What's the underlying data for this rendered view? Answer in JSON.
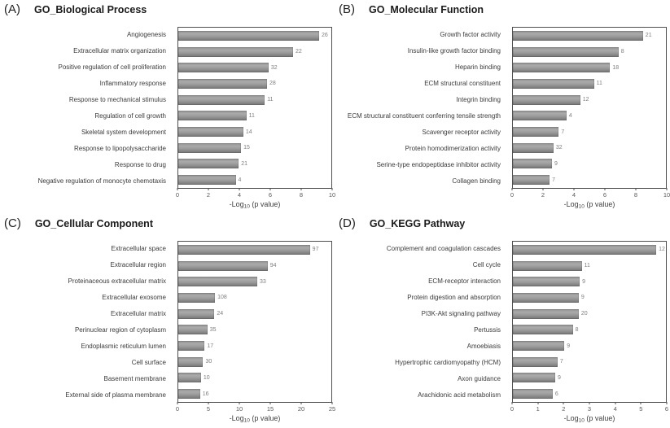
{
  "figure": {
    "background": "#ffffff",
    "bar_color_top": "#8f8f8f",
    "bar_color_mid": "#ababab",
    "bar_color_bottom": "#747474",
    "plot_border_color": "#4f4f4f",
    "xlabel_pre": "-Log",
    "xlabel_sub": "10",
    "xlabel_post": " (p value)"
  },
  "chart_data": [
    {
      "type": "bar",
      "orientation": "horizontal",
      "panel_letter": "(A)",
      "title": "GO_Biological Process",
      "xlabel": "-Log10 (p value)",
      "xlim": [
        0,
        10
      ],
      "xticks": [
        0,
        2,
        4,
        6,
        8,
        10
      ],
      "grid": false,
      "categories": [
        "Angiogenesis",
        "Extracellular matrix organization",
        "Positive regulation of cell proliferation",
        "Inflammatory response",
        "Response to mechanical stimulus",
        "Regulation of cell growth",
        "Skeletal system development",
        "Response to lipopolysaccharide",
        "Response to drug",
        "Negative regulation of monocyte chemotaxis"
      ],
      "values": [
        9.2,
        7.5,
        5.9,
        5.8,
        5.65,
        4.45,
        4.25,
        4.1,
        3.95,
        3.75
      ],
      "bar_labels": [
        "26",
        "22",
        "32",
        "28",
        "11",
        "11",
        "14",
        "15",
        "21",
        "4"
      ]
    },
    {
      "type": "bar",
      "orientation": "horizontal",
      "panel_letter": "(B)",
      "title": "GO_Molecular Function",
      "xlabel": "-Log10 (p value)",
      "xlim": [
        0,
        10
      ],
      "xticks": [
        0,
        2,
        4,
        6,
        8,
        10
      ],
      "grid": false,
      "categories": [
        "Growth factor activity",
        "Insulin-like growth factor binding",
        "Heparin binding",
        "ECM structural constituent",
        "Integrin binding",
        "ECM structural constituent conferring tensile strength",
        "Scavenger receptor activity",
        "Protein homodimerization activity",
        "Serine-type endopeptidase inhibitor activity",
        "Collagen binding"
      ],
      "values": [
        8.5,
        6.9,
        6.35,
        5.3,
        4.4,
        3.5,
        3.0,
        2.65,
        2.55,
        2.4
      ],
      "bar_labels": [
        "21",
        "8",
        "18",
        "11",
        "12",
        "4",
        "7",
        "32",
        "9",
        "7"
      ]
    },
    {
      "type": "bar",
      "orientation": "horizontal",
      "panel_letter": "(C)",
      "title": "GO_Cellular Component",
      "xlabel": "-Log10 (p value)",
      "xlim": [
        0,
        25
      ],
      "xticks": [
        0,
        5,
        10,
        15,
        20,
        25
      ],
      "grid": false,
      "categories": [
        "Extracellular space",
        "Extracellular region",
        "Proteinaceous extracellular matrix",
        "Extracellular exosome",
        "Extracellular matrix",
        "Perinuclear region of cytoplasm",
        "Endoplasmic reticulum lumen",
        "Cell surface",
        "Basement membrane",
        "External side of plasma membrane"
      ],
      "values": [
        21.5,
        14.6,
        12.9,
        6.0,
        5.9,
        4.75,
        4.3,
        4.05,
        3.7,
        3.55
      ],
      "bar_labels": [
        "97",
        "94",
        "33",
        "108",
        "24",
        "35",
        "17",
        "30",
        "10",
        "16"
      ]
    },
    {
      "type": "bar",
      "orientation": "horizontal",
      "panel_letter": "(D)",
      "title": "GO_KEGG Pathway",
      "xlabel": "-Log10 (p value)",
      "xlim": [
        0,
        6
      ],
      "xticks": [
        0,
        1,
        2,
        3,
        4,
        5,
        6
      ],
      "grid": false,
      "categories": [
        "Complement and coagulation cascades",
        "Cell cycle",
        "ECM-receptor interaction",
        "Protein digestion and absorption",
        "PI3K-Akt signaling pathway",
        "Pertussis",
        "Amoebiasis",
        "Hypertrophic cardiomyopathy (HCM)",
        "Axon guidance",
        "Arachidonic acid metabolism"
      ],
      "values": [
        5.62,
        2.7,
        2.62,
        2.58,
        2.58,
        2.35,
        2.02,
        1.75,
        1.66,
        1.56
      ],
      "bar_labels": [
        "12",
        "11",
        "9",
        "9",
        "20",
        "8",
        "9",
        "7",
        "9",
        "6"
      ]
    }
  ]
}
